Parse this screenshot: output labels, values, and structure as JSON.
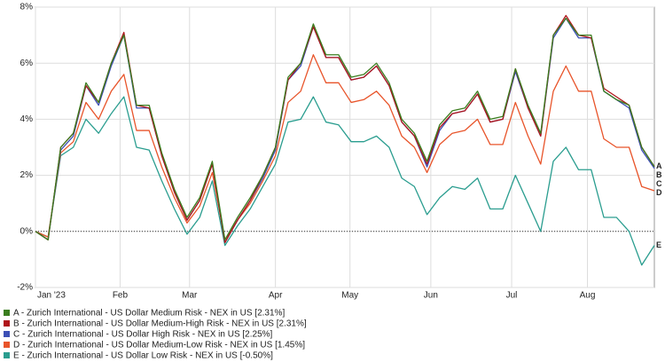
{
  "chart_data": {
    "type": "line",
    "xlim": [
      0,
      49
    ],
    "xticks": [
      {
        "value": 0,
        "label": "Jan '23"
      },
      {
        "value": 6.7,
        "label": "Feb"
      },
      {
        "value": 12.2,
        "label": "Mar"
      },
      {
        "value": 19.0,
        "label": "Apr"
      },
      {
        "value": 24.9,
        "label": "May"
      },
      {
        "value": 31.3,
        "label": "Jun"
      },
      {
        "value": 37.7,
        "label": "Jul"
      },
      {
        "value": 43.7,
        "label": "Aug"
      }
    ],
    "ylim": [
      -2,
      8
    ],
    "yticks": [
      {
        "value": -2,
        "label": "-2%"
      },
      {
        "value": 0,
        "label": "0%"
      },
      {
        "value": 2,
        "label": "2%"
      },
      {
        "value": 4,
        "label": "4%"
      },
      {
        "value": 6,
        "label": "6%"
      },
      {
        "value": 8,
        "label": "8%"
      }
    ],
    "grid": true,
    "series": [
      {
        "name": "A - Zurich International - US Dollar Medium Risk - NEX in US [2.31%]",
        "label": "A",
        "color": "#3a7d1e",
        "values": [
          0,
          -0.3,
          3.0,
          3.5,
          5.3,
          4.6,
          6.0,
          7.0,
          4.5,
          4.5,
          2.8,
          1.5,
          0.5,
          1.2,
          2.5,
          -0.3,
          0.5,
          1.2,
          2.0,
          3.0,
          5.5,
          6.0,
          7.4,
          6.3,
          6.3,
          5.5,
          5.6,
          6.0,
          5.3,
          4.0,
          3.5,
          2.5,
          3.8,
          4.3,
          4.4,
          5.0,
          4.0,
          4.1,
          5.8,
          4.5,
          3.5,
          7.0,
          7.6,
          7.0,
          7.0,
          5.0,
          4.7,
          4.5,
          3.0,
          2.31
        ]
      },
      {
        "name": "B - Zurich International - US Dollar Medium-High Risk - NEX in US [2.31%]",
        "label": "B",
        "color": "#b0151b",
        "values": [
          0,
          -0.3,
          3.0,
          3.5,
          5.2,
          4.6,
          6.0,
          7.1,
          4.5,
          4.4,
          2.7,
          1.4,
          0.4,
          1.1,
          2.4,
          -0.4,
          0.4,
          1.1,
          2.0,
          3.0,
          5.4,
          6.0,
          7.3,
          6.2,
          6.2,
          5.4,
          5.5,
          5.9,
          5.2,
          3.9,
          3.4,
          2.4,
          3.7,
          4.2,
          4.3,
          4.9,
          3.9,
          4.0,
          5.8,
          4.4,
          3.4,
          7.0,
          7.7,
          7.0,
          6.9,
          5.1,
          4.8,
          4.5,
          3.0,
          2.31
        ]
      },
      {
        "name": "C - Zurich International - US Dollar High Risk - NEX in US [2.25%]",
        "label": "C",
        "color": "#3c4fb5",
        "values": [
          0,
          -0.3,
          2.9,
          3.4,
          5.2,
          4.5,
          5.9,
          7.0,
          4.4,
          4.4,
          2.7,
          1.4,
          0.4,
          1.1,
          2.4,
          -0.4,
          0.4,
          1.1,
          1.9,
          2.9,
          5.4,
          5.9,
          7.3,
          6.2,
          6.2,
          5.4,
          5.5,
          5.9,
          5.2,
          3.9,
          3.4,
          2.3,
          3.6,
          4.2,
          4.3,
          4.9,
          3.9,
          4.0,
          5.7,
          4.4,
          3.4,
          6.9,
          7.6,
          6.9,
          6.9,
          5.0,
          4.7,
          4.4,
          2.9,
          2.25
        ]
      },
      {
        "name": "D - Zurich International - US Dollar Medium-Low Risk - NEX in US [1.45%]",
        "label": "D",
        "color": "#e8542a",
        "values": [
          0,
          -0.2,
          2.8,
          3.2,
          4.6,
          4.0,
          5.0,
          5.6,
          3.6,
          3.6,
          2.3,
          1.2,
          0.3,
          0.9,
          2.1,
          -0.3,
          0.4,
          1.0,
          1.8,
          2.7,
          4.6,
          5.0,
          6.3,
          5.3,
          5.3,
          4.6,
          4.7,
          5.0,
          4.5,
          3.4,
          3.0,
          2.1,
          3.1,
          3.5,
          3.6,
          4.0,
          3.1,
          3.1,
          4.6,
          3.4,
          2.4,
          5.0,
          5.9,
          5.0,
          5.0,
          3.3,
          3.0,
          3.0,
          1.6,
          1.45
        ]
      },
      {
        "name": "E - Zurich International - US Dollar Low Risk - NEX in US [-0.50%]",
        "label": "E",
        "color": "#2a9d8f",
        "values": [
          0,
          -0.2,
          2.7,
          3.0,
          4.0,
          3.5,
          4.2,
          4.8,
          3.0,
          2.9,
          1.8,
          0.8,
          -0.1,
          0.5,
          1.8,
          -0.5,
          0.2,
          0.8,
          1.6,
          2.4,
          3.9,
          4.0,
          4.8,
          3.9,
          3.8,
          3.2,
          3.2,
          3.4,
          3.0,
          1.9,
          1.6,
          0.6,
          1.2,
          1.6,
          1.5,
          1.9,
          0.8,
          0.8,
          2.0,
          1.0,
          0.0,
          2.5,
          3.0,
          2.2,
          2.2,
          0.5,
          0.5,
          0.0,
          -1.2,
          -0.5
        ]
      }
    ]
  }
}
